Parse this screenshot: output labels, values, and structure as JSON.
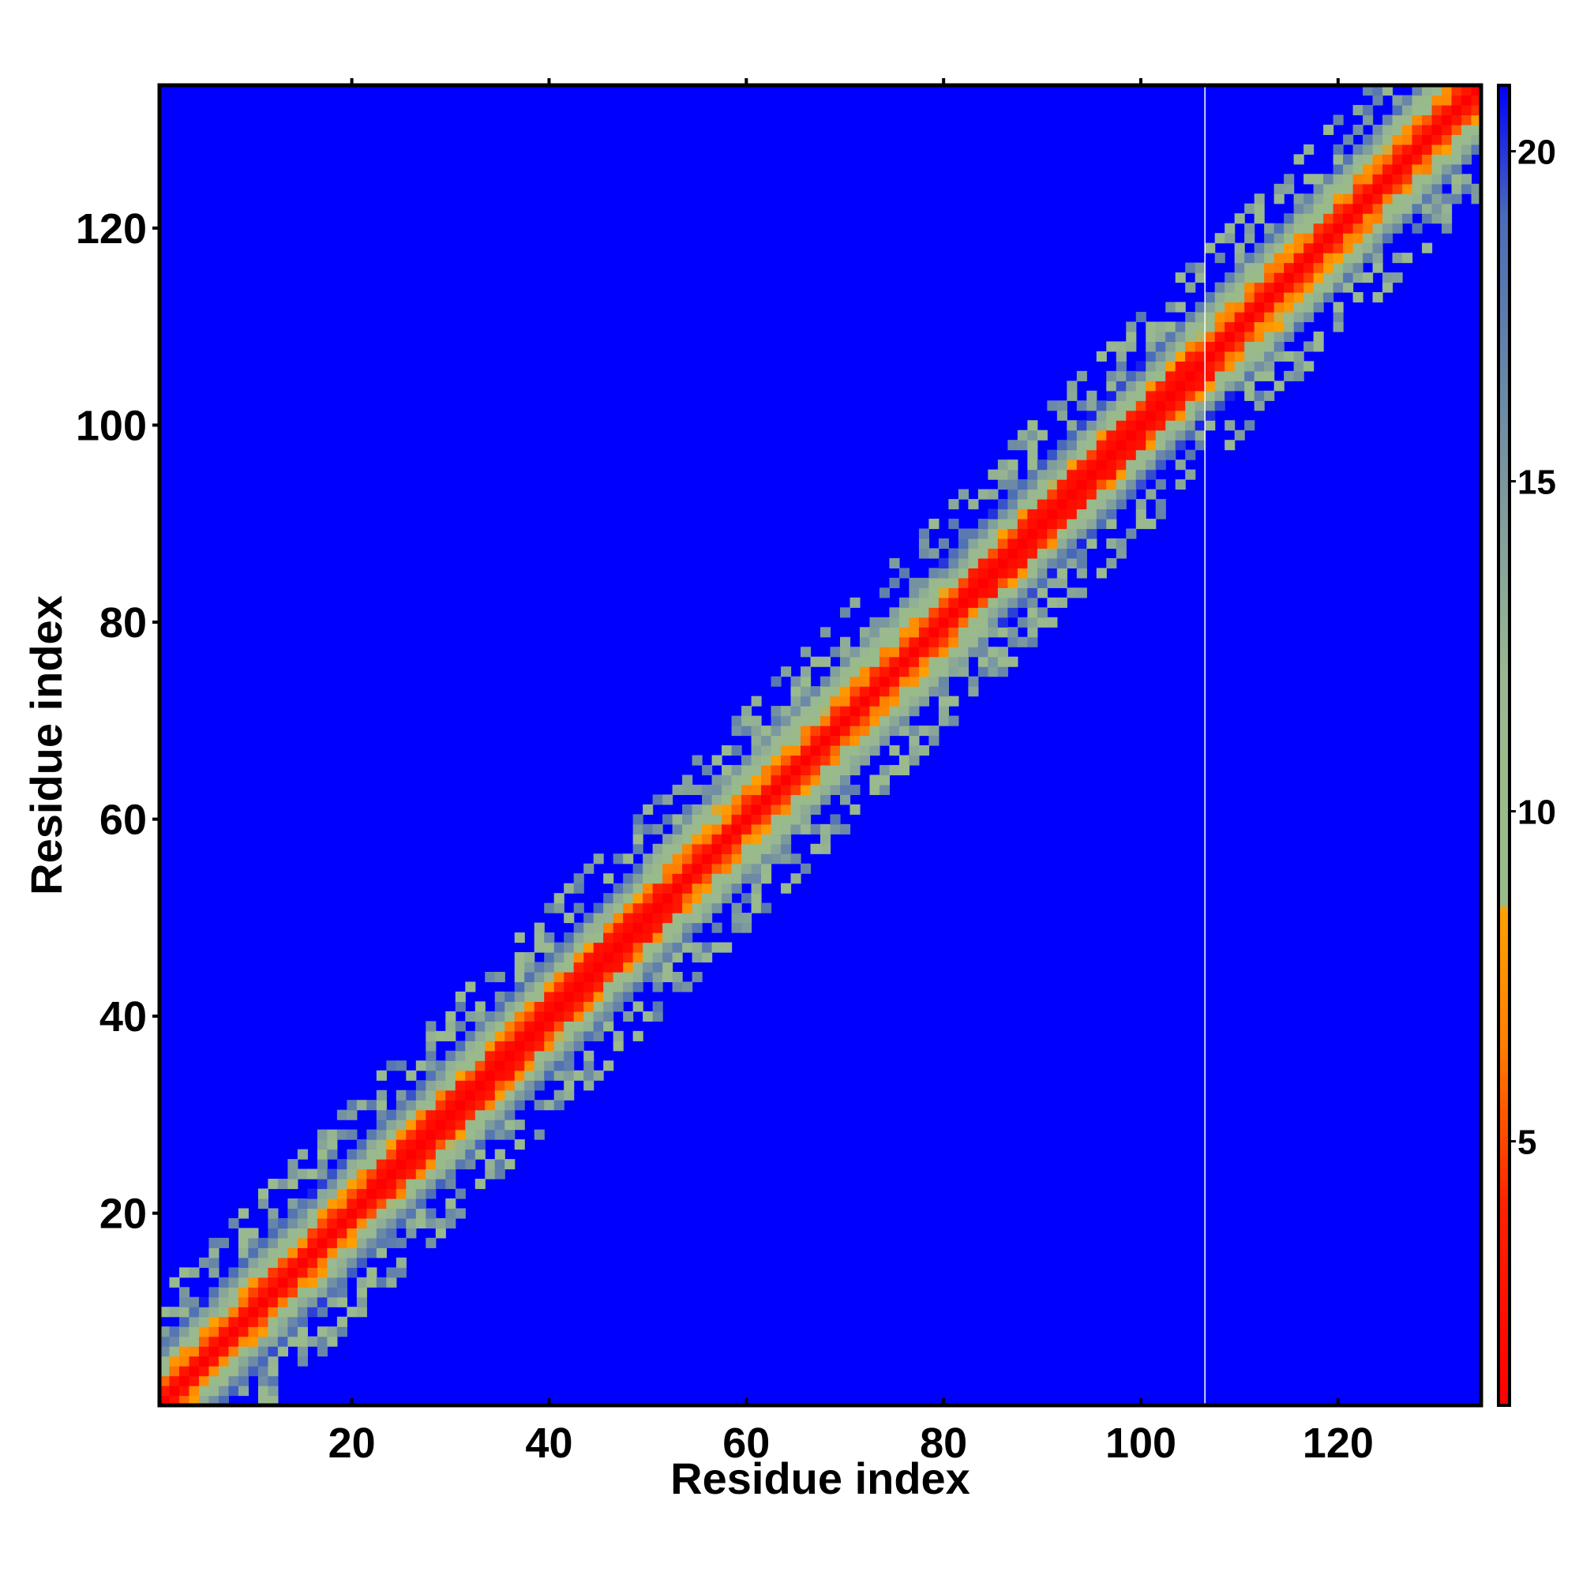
{
  "chart_data": {
    "type": "heatmap",
    "title": "",
    "xlabel": "Residue index",
    "ylabel": "Residue index",
    "xlim": [
      1,
      134
    ],
    "ylim": [
      1,
      134
    ],
    "x_ticks": [
      20,
      40,
      60,
      80,
      100,
      120
    ],
    "y_ticks": [
      20,
      40,
      60,
      80,
      100,
      120
    ],
    "x_tick_labels": [
      "20",
      "40",
      "60",
      "80",
      "100",
      "120"
    ],
    "y_tick_labels": [
      "20",
      "40",
      "60",
      "80",
      "100",
      "120"
    ],
    "grid": false,
    "n_residues": 134,
    "gap_after_residue": 106,
    "colorbar": {
      "range": [
        1,
        21
      ],
      "ticks": [
        5,
        10,
        15,
        20
      ],
      "tick_labels": [
        "5",
        "10",
        "15",
        "20"
      ],
      "placement": "right",
      "stops": [
        {
          "value": 1,
          "color": "#ff0000"
        },
        {
          "value": 4,
          "color": "#ff2000"
        },
        {
          "value": 6.5,
          "color": "#ff8000"
        },
        {
          "value": 8.5,
          "color": "#ffa000"
        },
        {
          "value": 8.6,
          "color": "#99bb88"
        },
        {
          "value": 12,
          "color": "#9ab890"
        },
        {
          "value": 16,
          "color": "#6f8ca4"
        },
        {
          "value": 19,
          "color": "#4a6cb8"
        },
        {
          "value": 21,
          "color": "#0000ff"
        }
      ]
    },
    "distance_map": {
      "description_fields": "band distance by |i-j| for residue segments",
      "segments": [
        {
          "from": 1,
          "to": 22,
          "band": [
            1,
            3,
            6,
            9,
            12,
            15,
            19
          ]
        },
        {
          "from": 23,
          "to": 52,
          "band": [
            1,
            2,
            4,
            8,
            11,
            14,
            18
          ]
        },
        {
          "from": 53,
          "to": 82,
          "band": [
            1,
            3,
            6,
            8,
            10,
            12,
            15
          ]
        },
        {
          "from": 83,
          "to": 106,
          "band": [
            1,
            2,
            4,
            9,
            12,
            15,
            19
          ]
        },
        {
          "from": 107,
          "to": 134,
          "band": [
            1,
            3,
            6,
            8,
            10,
            13,
            17
          ]
        }
      ],
      "beyond_band": 21
    }
  },
  "colors": {
    "background": "#0000ff",
    "frame": "#000000",
    "gap_line": "#ffffff"
  }
}
